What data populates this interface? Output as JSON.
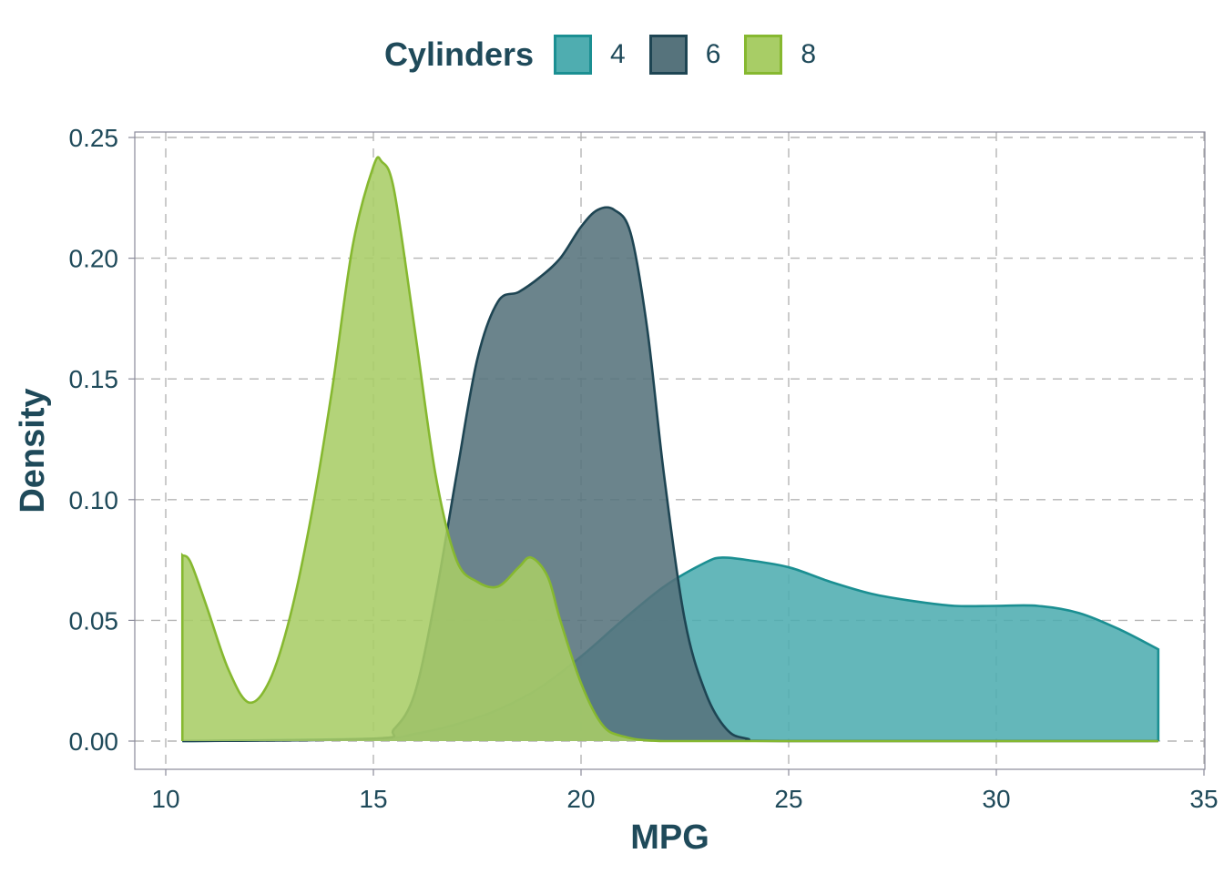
{
  "legend": {
    "title": "Cylinders",
    "items": [
      {
        "label": "4",
        "fill": "#4fadb0",
        "stroke": "#1b8f92"
      },
      {
        "label": "6",
        "fill": "#56737c",
        "stroke": "#1e4553"
      },
      {
        "label": "8",
        "fill": "#a8cd66",
        "stroke": "#86b830"
      }
    ]
  },
  "chart_data": {
    "type": "area",
    "xlabel": "MPG",
    "ylabel": "Density",
    "xlim": [
      10,
      35
    ],
    "ylim": [
      0,
      0.25
    ],
    "x_ticks": [
      "10",
      "15",
      "20",
      "25",
      "30",
      "35"
    ],
    "y_ticks": [
      "0.00",
      "0.05",
      "0.10",
      "0.15",
      "0.20",
      "0.25"
    ],
    "grid": "dashed",
    "legend_position": "top",
    "series": [
      {
        "name": "4",
        "color": "#4fadb0",
        "x": [
          10.4,
          15,
          16,
          17,
          18,
          19,
          20,
          21,
          22,
          23,
          23.4,
          24,
          25,
          26,
          27,
          28,
          29,
          30,
          31,
          32,
          33,
          33.9
        ],
        "y": [
          0.0,
          0.001,
          0.003,
          0.007,
          0.013,
          0.022,
          0.035,
          0.05,
          0.064,
          0.074,
          0.076,
          0.075,
          0.072,
          0.066,
          0.061,
          0.058,
          0.056,
          0.056,
          0.056,
          0.053,
          0.046,
          0.038
        ]
      },
      {
        "name": "6",
        "color": "#56737c",
        "x": [
          10.4,
          15,
          15.5,
          16,
          16.5,
          17,
          17.5,
          18,
          18.5,
          19,
          19.5,
          20,
          20.4,
          20.8,
          21.2,
          21.6,
          22,
          22.5,
          23,
          23.5,
          24,
          25,
          33.9
        ],
        "y": [
          0.0,
          0.001,
          0.005,
          0.02,
          0.06,
          0.11,
          0.158,
          0.182,
          0.186,
          0.192,
          0.2,
          0.213,
          0.22,
          0.22,
          0.21,
          0.17,
          0.11,
          0.05,
          0.02,
          0.005,
          0.001,
          0.0,
          0.0
        ]
      },
      {
        "name": "8",
        "color": "#a8cd66",
        "x": [
          10.4,
          10.6,
          11,
          11.5,
          12,
          12.5,
          13,
          13.5,
          14,
          14.5,
          15,
          15.2,
          15.5,
          16,
          16.5,
          17,
          17.5,
          18,
          18.5,
          18.8,
          19.2,
          19.5,
          20,
          20.5,
          21,
          22,
          25,
          33.9
        ],
        "y": [
          0.077,
          0.074,
          0.055,
          0.03,
          0.016,
          0.025,
          0.052,
          0.093,
          0.145,
          0.205,
          0.238,
          0.24,
          0.228,
          0.17,
          0.11,
          0.075,
          0.066,
          0.064,
          0.072,
          0.076,
          0.068,
          0.05,
          0.024,
          0.007,
          0.002,
          0.0,
          0.0,
          0.0
        ]
      }
    ]
  }
}
